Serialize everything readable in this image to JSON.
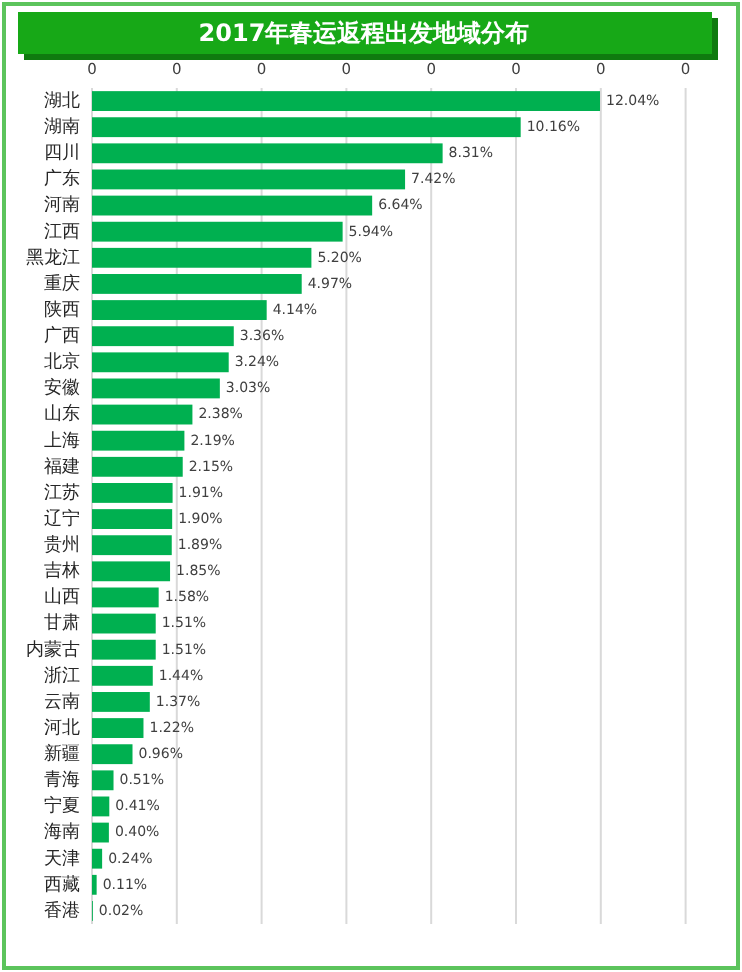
{
  "chart_data": {
    "type": "bar",
    "orientation": "horizontal",
    "title": "2017年春运返程出发地域分布",
    "categories": [
      "湖北",
      "湖南",
      "四川",
      "广东",
      "河南",
      "江西",
      "黑龙江",
      "重庆",
      "陕西",
      "广西",
      "北京",
      "安徽",
      "山东",
      "上海",
      "福建",
      "江苏",
      "辽宁",
      "贵州",
      "吉林",
      "山西",
      "甘肃",
      "内蒙古",
      "浙江",
      "云南",
      "河北",
      "新疆",
      "青海",
      "宁夏",
      "海南",
      "天津",
      "西藏",
      "香港"
    ],
    "values": [
      12.04,
      10.16,
      8.31,
      7.42,
      6.64,
      5.94,
      5.2,
      4.97,
      4.14,
      3.36,
      3.24,
      3.03,
      2.38,
      2.19,
      2.15,
      1.91,
      1.9,
      1.89,
      1.85,
      1.58,
      1.51,
      1.51,
      1.44,
      1.37,
      1.22,
      0.96,
      0.51,
      0.41,
      0.4,
      0.24,
      0.11,
      0.02
    ],
    "value_labels": [
      "12.04%",
      "10.16%",
      "8.31%",
      "7.42%",
      "6.64%",
      "5.94%",
      "5.20%",
      "4.97%",
      "4.14%",
      "3.36%",
      "3.24%",
      "3.03%",
      "2.38%",
      "2.19%",
      "2.15%",
      "1.91%",
      "1.90%",
      "1.89%",
      "1.85%",
      "1.58%",
      "1.51%",
      "1.51%",
      "1.44%",
      "1.37%",
      "1.22%",
      "0.96%",
      "0.51%",
      "0.41%",
      "0.40%",
      "0.24%",
      "0.11%",
      "0.02%"
    ],
    "color": "#00b050",
    "annotations": [
      "0",
      "0",
      "0",
      "0",
      "0",
      "0",
      "0",
      "0"
    ],
    "grid": "x"
  }
}
